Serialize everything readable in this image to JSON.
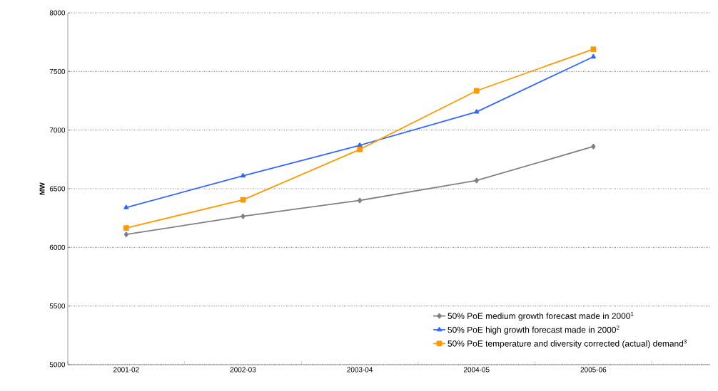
{
  "chart_data": {
    "type": "line",
    "ylabel": "MW",
    "categories": [
      "2001-02",
      "2002-03",
      "2003-04",
      "2004-05",
      "2005-06"
    ],
    "series": [
      {
        "name": "50% PoE medium growth forecast made in 2000$^{1}$",
        "color": "#808080",
        "marker": "diamond",
        "values": [
          6110,
          6265,
          6400,
          6570,
          6860
        ]
      },
      {
        "name": "50% PoE high growth forecast made in 2000$^{2}$",
        "color": "#3366ff",
        "marker": "triangle",
        "values": [
          6340,
          6610,
          6870,
          7155,
          7625
        ]
      },
      {
        "name": "50% PoE temperature and diversity corrected (actual) demand$^{3}$",
        "color": "#ff9900",
        "marker": "square",
        "values": [
          6165,
          6405,
          6835,
          7335,
          7690
        ]
      }
    ],
    "ylim": [
      5000,
      8000
    ],
    "yticks": [
      5000,
      5500,
      6000,
      6500,
      7000,
      7500,
      8000
    ],
    "grid": "y",
    "legend": "bottom right"
  }
}
